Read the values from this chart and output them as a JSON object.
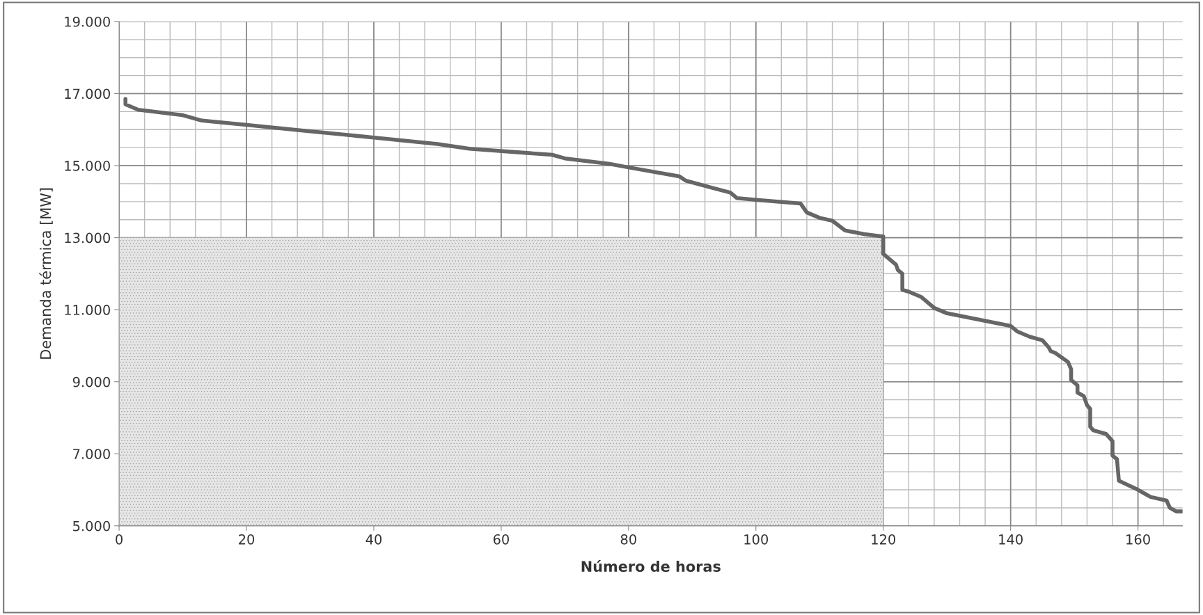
{
  "chart_data": {
    "type": "line",
    "xlabel": "Número de horas",
    "ylabel": "Demanda térmica [MW]",
    "xlim": [
      0,
      167
    ],
    "xticks": [
      0,
      20,
      40,
      60,
      80,
      100,
      120,
      140,
      160
    ],
    "ylim": [
      5000,
      19000
    ],
    "yticks": [
      {
        "value": 5000,
        "label": "5.000"
      },
      {
        "value": 7000,
        "label": "7.000"
      },
      {
        "value": 9000,
        "label": "9.000"
      },
      {
        "value": 11000,
        "label": "11.000"
      },
      {
        "value": 13000,
        "label": "13.000"
      },
      {
        "value": 15000,
        "label": "15.000"
      },
      {
        "value": 17000,
        "label": "17.000"
      },
      {
        "value": 19000,
        "label": "19.000"
      }
    ],
    "grid": true,
    "legend": false,
    "marker": "none",
    "line_style": "solid",
    "series": [
      {
        "type": "area",
        "color": "#e6e6e6",
        "x": [
          0,
          120
        ],
        "values": [
          13000,
          13000
        ]
      },
      {
        "color": "#666666",
        "x": [
          1,
          1,
          3,
          10,
          13,
          20,
          30,
          40,
          50,
          55,
          68,
          70,
          77,
          80,
          88,
          89,
          96,
          97,
          100,
          107,
          108,
          110,
          112,
          114,
          117,
          120,
          120,
          122,
          122.3,
          123,
          123,
          124,
          126,
          128,
          130,
          140,
          141,
          143,
          145,
          146,
          146.3,
          147,
          149,
          149.5,
          149.5,
          150.5,
          150.5,
          151.5,
          152,
          152.5,
          152.5,
          153,
          155,
          156,
          156,
          156.7,
          157,
          160,
          161,
          162,
          164.5,
          165,
          166,
          167
        ],
        "values": [
          16850,
          16700,
          16550,
          16400,
          16250,
          16130,
          15950,
          15780,
          15600,
          15470,
          15300,
          15200,
          15050,
          14950,
          14700,
          14580,
          14250,
          14100,
          14050,
          13950,
          13700,
          13550,
          13470,
          13200,
          13100,
          13030,
          12550,
          12250,
          12100,
          12000,
          11550,
          11500,
          11350,
          11050,
          10900,
          10550,
          10400,
          10250,
          10150,
          9950,
          9850,
          9800,
          9550,
          9350,
          9050,
          8900,
          8700,
          8600,
          8350,
          8250,
          7750,
          7650,
          7550,
          7350,
          6950,
          6850,
          6250,
          6000,
          5900,
          5800,
          5700,
          5500,
          5400,
          5400
        ]
      }
    ]
  }
}
